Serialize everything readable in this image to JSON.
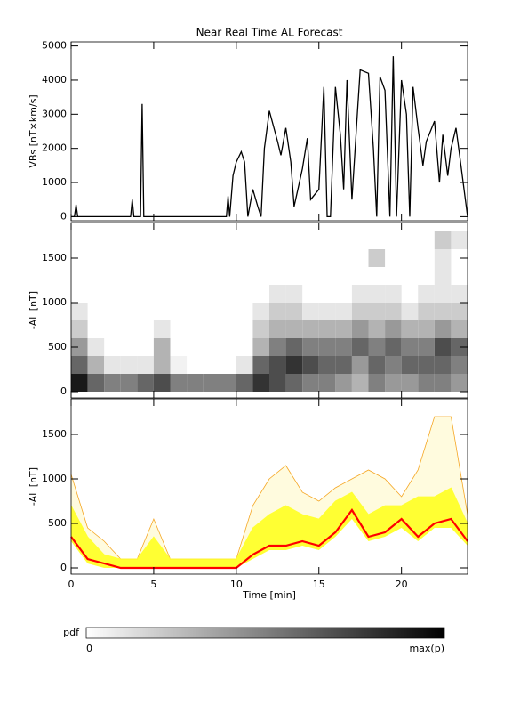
{
  "chart_data": [
    {
      "type": "line",
      "title": "Near Real Time AL Forecast",
      "ylabel": "VBs [nT×km/s]",
      "color": "#000000",
      "x": [
        0,
        0.2,
        0.3,
        0.4,
        3.6,
        3.7,
        3.8,
        4.2,
        4.3,
        4.4,
        9.4,
        9.5,
        9.6,
        9.8,
        10,
        10.3,
        10.5,
        10.7,
        11,
        11.3,
        11.5,
        11.7,
        12,
        12.5,
        12.7,
        13,
        13.3,
        13.5,
        14,
        14.3,
        14.5,
        15,
        15.3,
        15.5,
        15.7,
        16,
        16.3,
        16.5,
        16.7,
        17,
        17.3,
        17.5,
        18,
        18.3,
        18.5,
        18.7,
        19,
        19.3,
        19.5,
        19.7,
        20,
        20.3,
        20.5,
        20.7,
        21,
        21.3,
        21.5,
        22,
        22.3,
        22.5,
        22.8,
        23,
        23.3,
        23.6,
        24
      ],
      "values": [
        0,
        0,
        350,
        0,
        0,
        500,
        0,
        0,
        3300,
        0,
        0,
        600,
        0,
        1200,
        1600,
        1900,
        1600,
        0,
        800,
        300,
        0,
        2000,
        3100,
        2200,
        1800,
        2600,
        1600,
        300,
        1400,
        2300,
        500,
        800,
        3800,
        0,
        0,
        3800,
        2400,
        800,
        4000,
        500,
        2800,
        4300,
        4200,
        2000,
        0,
        4100,
        3700,
        0,
        4700,
        0,
        4000,
        3000,
        0,
        3800,
        2600,
        1500,
        2200,
        2800,
        1000,
        2400,
        1200,
        2000,
        2600,
        1500,
        0
      ],
      "xlim": [
        0,
        24
      ],
      "xticks": [
        0,
        5,
        10,
        15,
        20
      ],
      "ylim": [
        -120,
        5120
      ],
      "yticks": [
        0,
        1000,
        2000,
        3000,
        4000,
        5000
      ]
    },
    {
      "type": "heatmap",
      "ylabel": "-AL [nT]",
      "xbins": [
        0,
        1,
        2,
        3,
        4,
        5,
        6,
        7,
        8,
        9,
        10,
        11,
        12,
        13,
        14,
        15,
        16,
        17,
        18,
        19,
        20,
        21,
        22,
        23,
        24
      ],
      "ybins": [
        0,
        200,
        400,
        600,
        800,
        1000,
        1200,
        1400,
        1600,
        1800
      ],
      "z": [
        [
          0.9,
          0.6,
          0.5,
          0.5,
          0.6,
          0.7,
          0.5,
          0.5,
          0.5,
          0.5,
          0.6,
          0.8,
          0.7,
          0.6,
          0.5,
          0.5,
          0.4,
          0.3,
          0.5,
          0.4,
          0.4,
          0.5,
          0.5,
          0.4
        ],
        [
          0.6,
          0.3,
          0.1,
          0.1,
          0.1,
          0.3,
          0.05,
          0,
          0,
          0,
          0.1,
          0.6,
          0.7,
          0.8,
          0.7,
          0.6,
          0.6,
          0.4,
          0.6,
          0.5,
          0.6,
          0.6,
          0.6,
          0.5
        ],
        [
          0.4,
          0.1,
          0,
          0,
          0,
          0.3,
          0,
          0,
          0,
          0,
          0,
          0.3,
          0.5,
          0.6,
          0.5,
          0.5,
          0.5,
          0.6,
          0.5,
          0.6,
          0.5,
          0.5,
          0.7,
          0.6
        ],
        [
          0.2,
          0,
          0,
          0,
          0,
          0.1,
          0,
          0,
          0,
          0,
          0,
          0.2,
          0.3,
          0.3,
          0.3,
          0.3,
          0.3,
          0.4,
          0.3,
          0.4,
          0.3,
          0.3,
          0.4,
          0.3
        ],
        [
          0.1,
          0,
          0,
          0,
          0,
          0,
          0,
          0,
          0,
          0,
          0,
          0.1,
          0.2,
          0.2,
          0.1,
          0.1,
          0.1,
          0.2,
          0.2,
          0.2,
          0.1,
          0.2,
          0.2,
          0.2
        ],
        [
          0,
          0,
          0,
          0,
          0,
          0,
          0,
          0,
          0,
          0,
          0,
          0,
          0.1,
          0.1,
          0,
          0,
          0,
          0.1,
          0.1,
          0.1,
          0,
          0.1,
          0.1,
          0.1
        ],
        [
          0,
          0,
          0,
          0,
          0,
          0,
          0,
          0,
          0,
          0,
          0,
          0,
          0,
          0,
          0,
          0,
          0,
          0,
          0,
          0,
          0,
          0,
          0.1,
          0
        ],
        [
          0,
          0,
          0,
          0,
          0,
          0,
          0,
          0,
          0,
          0,
          0,
          0,
          0,
          0,
          0,
          0,
          0,
          0,
          0.2,
          0,
          0,
          0,
          0.1,
          0
        ],
        [
          0,
          0,
          0,
          0,
          0,
          0,
          0,
          0,
          0,
          0,
          0,
          0,
          0,
          0,
          0,
          0,
          0,
          0,
          0,
          0,
          0,
          0,
          0.2,
          0.1
        ]
      ],
      "colorbar": {
        "label": "pdf",
        "ticks": [
          0,
          {
            "value": 1,
            "label": "max(p)"
          }
        ]
      },
      "xlim": [
        0,
        24
      ],
      "xticks": [
        0,
        5,
        10,
        15,
        20
      ],
      "ylim": [
        -70,
        1900
      ],
      "yticks": [
        0,
        500,
        1000,
        1500
      ]
    },
    {
      "type": "band",
      "ylabel": "-AL [nT]",
      "xlabel": "Time [min]",
      "x": [
        0,
        1,
        2,
        3,
        4,
        5,
        6,
        7,
        8,
        9,
        10,
        11,
        12,
        13,
        14,
        15,
        16,
        17,
        18,
        19,
        20,
        21,
        22,
        23,
        24
      ],
      "outer_high": {
        "color": "#f5a623",
        "values": [
          1050,
          450,
          300,
          100,
          100,
          550,
          100,
          100,
          100,
          100,
          100,
          700,
          1000,
          1150,
          850,
          750,
          900,
          1000,
          1100,
          1000,
          800,
          1100,
          1700,
          1700,
          600
        ]
      },
      "band_high": {
        "color": "#ffff33",
        "values": [
          700,
          350,
          150,
          100,
          100,
          350,
          100,
          100,
          100,
          100,
          100,
          450,
          600,
          700,
          600,
          550,
          750,
          850,
          600,
          700,
          700,
          800,
          800,
          900,
          500
        ]
      },
      "band_low": {
        "color": "#ffff33",
        "values": [
          300,
          50,
          0,
          0,
          0,
          0,
          0,
          0,
          0,
          0,
          0,
          100,
          200,
          200,
          250,
          200,
          350,
          550,
          300,
          350,
          450,
          300,
          450,
          450,
          250
        ]
      },
      "line": {
        "color": "#ff0000",
        "values": [
          350,
          100,
          50,
          0,
          0,
          0,
          0,
          0,
          0,
          0,
          0,
          150,
          250,
          250,
          300,
          250,
          400,
          650,
          350,
          400,
          550,
          350,
          500,
          550,
          300
        ]
      },
      "xlim": [
        0,
        24
      ],
      "xticks": [
        0,
        5,
        10,
        15,
        20
      ],
      "ylim": [
        -70,
        1900
      ],
      "yticks": [
        0,
        500,
        1000,
        1500
      ]
    }
  ]
}
